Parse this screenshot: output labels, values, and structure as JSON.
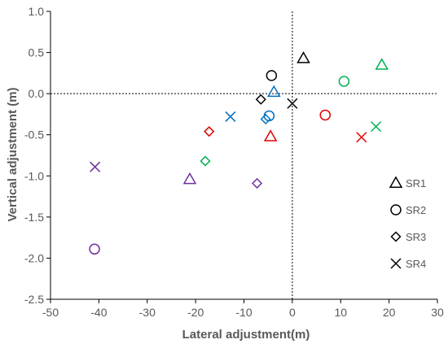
{
  "chart_data": {
    "type": "scatter",
    "xlabel": "Lateral adjustment(m)",
    "ylabel": "Vertical adjustment (m)",
    "xlim": [
      -50,
      30
    ],
    "ylim": [
      -2.5,
      1.0
    ],
    "x_ticks": [
      "-50",
      "-40",
      "-30",
      "-20",
      "-10",
      "0",
      "10",
      "20",
      "30"
    ],
    "y_ticks": [
      "1.0",
      "0.5",
      "0.0",
      "-0.5",
      "-1.0",
      "-1.5",
      "-2.0",
      "-2.5"
    ],
    "grid": false,
    "reference_lines": {
      "x": 0,
      "y": 0,
      "style": "dotted"
    },
    "legend_position": "right",
    "marker_shapes": {
      "SR1": "triangle",
      "SR2": "circle",
      "SR3": "diamond",
      "SR4": "cross"
    },
    "colors": {
      "black": "#000000",
      "green": "#00b050",
      "blue": "#0070c0",
      "red": "#e00000",
      "purple": "#7030a0"
    },
    "legend": [
      {
        "label": "SR1",
        "marker": "triangle"
      },
      {
        "label": "SR2",
        "marker": "circle"
      },
      {
        "label": "SR3",
        "marker": "diamond"
      },
      {
        "label": "SR4",
        "marker": "cross"
      }
    ],
    "series": [
      {
        "name": "SR1",
        "marker": "triangle",
        "points": [
          {
            "x": 2.3,
            "y": 0.43,
            "color": "black"
          },
          {
            "x": 18.5,
            "y": 0.35,
            "color": "green"
          },
          {
            "x": -3.8,
            "y": 0.02,
            "color": "blue"
          },
          {
            "x": -4.5,
            "y": -0.52,
            "color": "red"
          },
          {
            "x": -21.2,
            "y": -1.04,
            "color": "purple"
          }
        ]
      },
      {
        "name": "SR2",
        "marker": "circle",
        "points": [
          {
            "x": -4.3,
            "y": 0.22,
            "color": "black"
          },
          {
            "x": 10.7,
            "y": 0.15,
            "color": "green"
          },
          {
            "x": -4.8,
            "y": -0.27,
            "color": "blue"
          },
          {
            "x": 6.8,
            "y": -0.26,
            "color": "red"
          },
          {
            "x": -40.9,
            "y": -1.89,
            "color": "purple"
          }
        ]
      },
      {
        "name": "SR3",
        "marker": "diamond",
        "points": [
          {
            "x": -6.5,
            "y": -0.07,
            "color": "black"
          },
          {
            "x": -18.0,
            "y": -0.82,
            "color": "green"
          },
          {
            "x": -5.5,
            "y": -0.31,
            "color": "blue"
          },
          {
            "x": -17.2,
            "y": -0.46,
            "color": "red"
          },
          {
            "x": -7.3,
            "y": -1.09,
            "color": "purple"
          }
        ]
      },
      {
        "name": "SR4",
        "marker": "cross",
        "points": [
          {
            "x": 0.0,
            "y": -0.12,
            "color": "black"
          },
          {
            "x": 17.3,
            "y": -0.4,
            "color": "green"
          },
          {
            "x": -12.8,
            "y": -0.28,
            "color": "blue"
          },
          {
            "x": 14.3,
            "y": -0.53,
            "color": "red"
          },
          {
            "x": -40.8,
            "y": -0.89,
            "color": "purple"
          }
        ]
      }
    ]
  }
}
